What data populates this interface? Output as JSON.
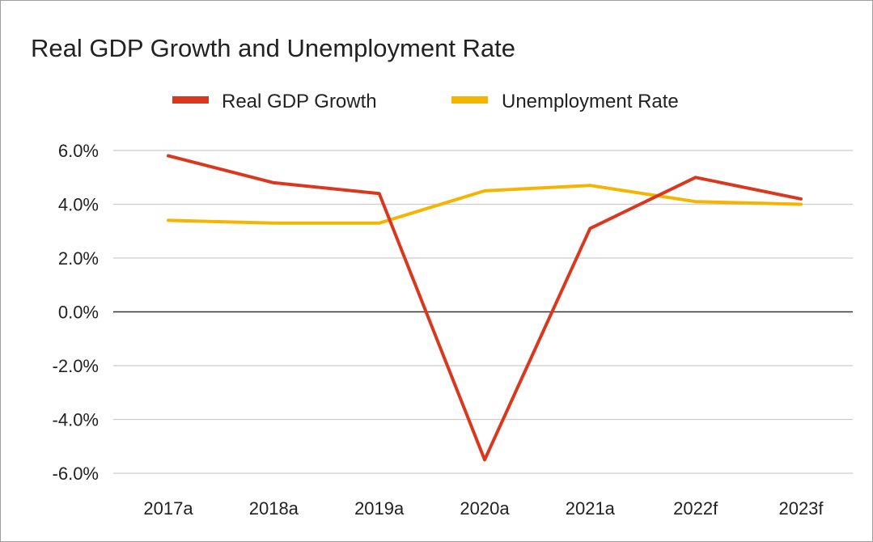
{
  "chart_data": {
    "type": "line",
    "title": "Real GDP Growth and Unemployment Rate",
    "categories": [
      "2017a",
      "2018a",
      "2019a",
      "2020a",
      "2021a",
      "2022f",
      "2023f"
    ],
    "series": [
      {
        "name": "Real GDP Growth",
        "color": "#d9381e",
        "values": [
          5.8,
          4.8,
          4.4,
          -5.5,
          3.1,
          5.0,
          4.2
        ]
      },
      {
        "name": "Unemployment Rate",
        "color": "#f4b400",
        "values": [
          3.4,
          3.3,
          3.3,
          4.5,
          4.7,
          4.1,
          4.0
        ]
      }
    ],
    "y_ticks": [
      "6.0%",
      "4.0%",
      "2.0%",
      "0.0%",
      "-2.0%",
      "-4.0%",
      "-6.0%"
    ],
    "ylim": [
      -6,
      6
    ],
    "xlabel": "",
    "ylabel": "",
    "legend_position": "top",
    "grid": true
  }
}
